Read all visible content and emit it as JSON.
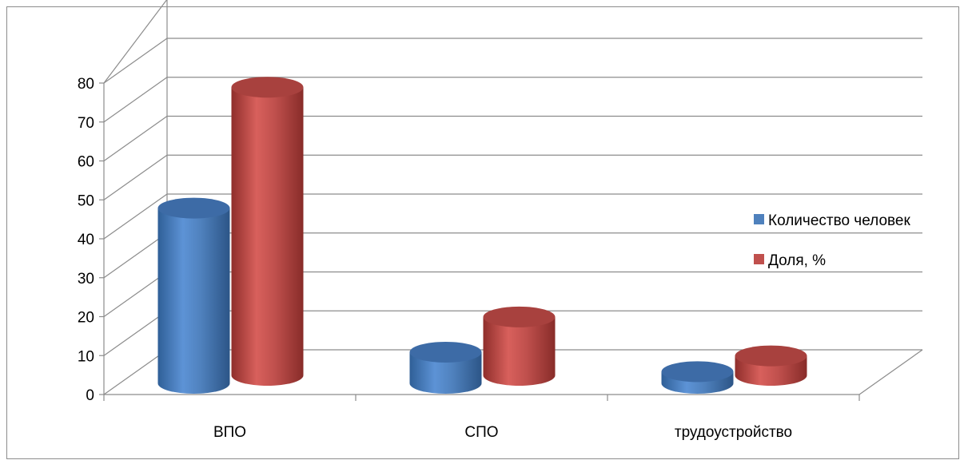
{
  "chart_data": {
    "type": "bar",
    "style": "3d-cylinder",
    "categories": [
      "ВПО",
      "СПО",
      "трудоустройство"
    ],
    "series": [
      {
        "name": "Количество человек",
        "values": [
          45,
          8,
          3
        ],
        "color": "#4f81bd"
      },
      {
        "name": "Доля, %",
        "values": [
          74,
          15,
          5
        ],
        "color": "#c0504d"
      }
    ],
    "yticks": [
      "0",
      "10",
      "20",
      "30",
      "40",
      "50",
      "60",
      "70",
      "80"
    ],
    "ylim": [
      0,
      80
    ],
    "grid": true,
    "legend_position": "right"
  }
}
